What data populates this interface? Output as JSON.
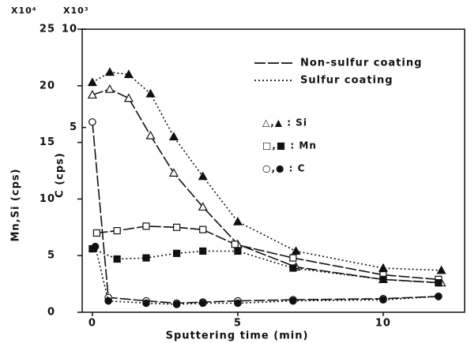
{
  "chart_data": {
    "type": "line",
    "xlabel": "Sputtering time (min)",
    "ylabel": "Mn,Si (cps)",
    "y2label": "C (cps)",
    "ymultiplier": "X10⁴",
    "y2multiplier": "X10³",
    "xlim": [
      -0.35,
      12.8
    ],
    "xticks": [
      0,
      5,
      10
    ],
    "ylim": [
      0,
      25
    ],
    "yticks": [
      0,
      5,
      10,
      15,
      20,
      25
    ],
    "y2lim": [
      -4.4,
      10
    ],
    "y2ticks": [
      5,
      10
    ],
    "legend": {
      "lines": [
        {
          "label": "Non-sulfur coating",
          "dash": "solid"
        },
        {
          "label": "Sulfur coating",
          "dash": "dotted"
        }
      ],
      "markers": [
        {
          "label": "△,▲ : Si",
          "marker": "triangle"
        },
        {
          "label": "□,■ : Mn",
          "marker": "square"
        },
        {
          "label": "○,● : C",
          "marker": "circle"
        }
      ]
    },
    "series": [
      {
        "marker": "triangle",
        "filled": false,
        "dash": "solid",
        "x": [
          0,
          0.6,
          1.25,
          2,
          2.8,
          3.8,
          5,
          7,
          10,
          12
        ],
        "values": [
          19.2,
          19.7,
          18.9,
          15.6,
          12.3,
          9.3,
          6.0,
          4.0,
          2.9,
          2.6
        ]
      },
      {
        "marker": "triangle",
        "filled": true,
        "dash": "dotted",
        "x": [
          0,
          0.6,
          1.25,
          2,
          2.8,
          3.8,
          5,
          7,
          10,
          12
        ],
        "values": [
          20.3,
          21.2,
          21.0,
          19.3,
          15.5,
          12.0,
          8.0,
          5.4,
          3.9,
          3.7
        ]
      },
      {
        "marker": "square",
        "filled": false,
        "dash": "solid",
        "x": [
          0.15,
          0.85,
          1.85,
          2.9,
          3.8,
          4.9,
          6.9,
          10,
          11.9
        ],
        "values": [
          7.0,
          7.2,
          7.6,
          7.5,
          7.3,
          6.0,
          4.8,
          3.3,
          2.9
        ]
      },
      {
        "marker": "square",
        "filled": true,
        "dash": "dotted",
        "x": [
          0,
          0.85,
          1.85,
          2.9,
          3.8,
          5,
          6.9,
          10,
          11.9
        ],
        "values": [
          5.6,
          4.7,
          4.8,
          5.2,
          5.4,
          5.4,
          3.9,
          2.9,
          2.6
        ]
      },
      {
        "marker": "circle",
        "filled": false,
        "dash": "solid",
        "x": [
          0,
          0.55,
          1.85,
          2.9,
          3.8,
          5,
          6.9,
          10,
          11.9
        ],
        "values": [
          16.8,
          1.3,
          1.0,
          0.8,
          0.9,
          1.0,
          1.1,
          1.2,
          1.4
        ]
      },
      {
        "marker": "circle",
        "filled": true,
        "dash": "dotted",
        "x": [
          0.1,
          0.55,
          1.85,
          2.9,
          3.8,
          5,
          6.9,
          10,
          11.9
        ],
        "values": [
          5.8,
          1.0,
          0.8,
          0.7,
          0.8,
          0.8,
          1.0,
          1.1,
          1.4
        ]
      }
    ]
  }
}
